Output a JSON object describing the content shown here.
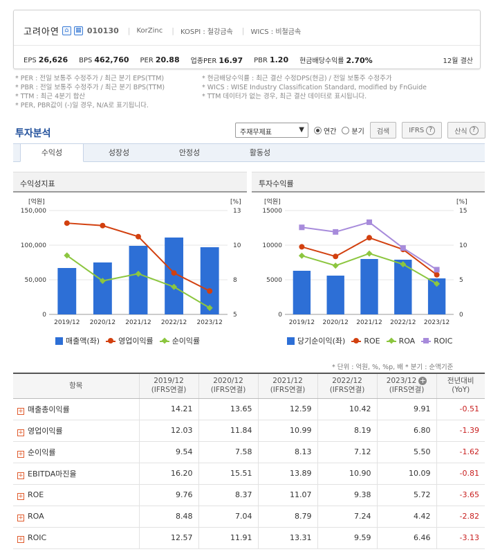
{
  "company": {
    "name": "고려아연",
    "icon1": "home-icon",
    "icon2": "building-icon",
    "code": "010130",
    "eng_name": "KorZinc",
    "kospi": "KOSPI : 철강금속",
    "wics": "WICS : 비철금속"
  },
  "stats": [
    {
      "label": "EPS",
      "value": "26,626"
    },
    {
      "label": "BPS",
      "value": "462,760"
    },
    {
      "label": "PER",
      "value": "20.88"
    },
    {
      "label": "업종PER",
      "value": "16.97"
    },
    {
      "label": "PBR",
      "value": "1.20"
    },
    {
      "label": "현금배당수익률",
      "value": "2.70%"
    }
  ],
  "settle": "12월 결산",
  "notes": {
    "left": [
      "* PER : 전일 보통주 수정주가 / 최근 분기 EPS(TTM)",
      "* PBR : 전일 보통주 수정주가 / 최근 분기 BPS(TTM)",
      "* TTM : 최근 4분기 합산",
      "* PER, PBR값이 (-)일 경우, N/A로 표기됩니다."
    ],
    "right": [
      "* 현금배당수익률 : 최근 결산 수정DPS(현금) / 전일 보통주 수정주가",
      "* WICS : WISE Industry Classification Standard, modified by FnGuide",
      "* TTM 데이터가 없는 경우, 최근 결산 데이터로 표시됩니다."
    ]
  },
  "section_title": "투자분석",
  "controls": {
    "select_value": "주재무제표",
    "radio_annual": "연간",
    "radio_quarter": "분기",
    "search_btn": "검색",
    "ifrs_btn": "IFRS",
    "calc_btn": "산식"
  },
  "tabs": [
    "수익성",
    "성장성",
    "안정성",
    "활동성"
  ],
  "panels": {
    "left_title": "수익성지표",
    "right_title": "투자수익률"
  },
  "chart_data": [
    {
      "type": "bar",
      "categories": [
        "2019/12",
        "2020/12",
        "2021/12",
        "2022/12",
        "2023/12"
      ],
      "y_left": {
        "unit": "[억원]",
        "range": [
          0,
          150000
        ],
        "ticks": [
          "0",
          "50,000",
          "100,000",
          "150,000"
        ]
      },
      "y_right": {
        "unit": "[%]",
        "range": [
          5,
          13
        ],
        "ticks": [
          "5",
          "8",
          "10",
          "13"
        ]
      },
      "series": [
        {
          "name": "매출액(좌)",
          "kind": "bar",
          "axis": "left",
          "color": "#2d6fd6",
          "values": [
            67000,
            75000,
            99000,
            111000,
            97000
          ]
        },
        {
          "name": "영업이익률",
          "kind": "line",
          "axis": "right",
          "color": "#d2400f",
          "marker": "circle",
          "values": [
            12.03,
            11.84,
            10.99,
            8.19,
            6.8
          ]
        },
        {
          "name": "순이익률",
          "kind": "line",
          "axis": "right",
          "color": "#8cc63f",
          "marker": "diamond",
          "values": [
            9.54,
            7.58,
            8.13,
            7.12,
            5.5
          ]
        }
      ]
    },
    {
      "type": "bar",
      "categories": [
        "2019/12",
        "2020/12",
        "2021/12",
        "2022/12",
        "2023/12"
      ],
      "y_left": {
        "unit": "[억원]",
        "range": [
          0,
          15000
        ],
        "ticks": [
          "0",
          "5000",
          "10000",
          "15000"
        ]
      },
      "y_right": {
        "unit": "[%]",
        "range": [
          0,
          15
        ],
        "ticks": [
          "0",
          "5",
          "10",
          "15"
        ]
      },
      "series": [
        {
          "name": "당기순이익(좌)",
          "kind": "bar",
          "axis": "left",
          "color": "#2d6fd6",
          "values": [
            6300,
            5600,
            8000,
            7900,
            5200
          ]
        },
        {
          "name": "ROE",
          "kind": "line",
          "axis": "right",
          "color": "#d2400f",
          "marker": "circle",
          "values": [
            9.76,
            8.37,
            11.07,
            9.38,
            5.72
          ]
        },
        {
          "name": "ROA",
          "kind": "line",
          "axis": "right",
          "color": "#8cc63f",
          "marker": "diamond",
          "values": [
            8.48,
            7.04,
            8.79,
            7.24,
            4.42
          ]
        },
        {
          "name": "ROIC",
          "kind": "line",
          "axis": "right",
          "color": "#a78bdb",
          "marker": "square",
          "values": [
            12.57,
            11.91,
            13.31,
            9.59,
            6.46
          ]
        }
      ]
    }
  ],
  "unit_note": "* 단위 : 억원, %, %p, 배     * 분기 : 순액기준",
  "table": {
    "headers": [
      {
        "l1": "항목",
        "l2": ""
      },
      {
        "l1": "2019/12",
        "l2": "(IFRS연결)"
      },
      {
        "l1": "2020/12",
        "l2": "(IFRS연결)"
      },
      {
        "l1": "2021/12",
        "l2": "(IFRS연결)"
      },
      {
        "l1": "2022/12",
        "l2": "(IFRS연결)"
      },
      {
        "l1": "2023/12",
        "l2": "(IFRS연결)"
      },
      {
        "l1": "전년대비",
        "l2": "(YoY)"
      }
    ],
    "rows": [
      {
        "name": "매출총이익률",
        "vals": [
          "14.21",
          "13.65",
          "12.59",
          "10.42",
          "9.91"
        ],
        "yoy": "-0.51"
      },
      {
        "name": "영업이익률",
        "vals": [
          "12.03",
          "11.84",
          "10.99",
          "8.19",
          "6.80"
        ],
        "yoy": "-1.39"
      },
      {
        "name": "순이익률",
        "vals": [
          "9.54",
          "7.58",
          "8.13",
          "7.12",
          "5.50"
        ],
        "yoy": "-1.62"
      },
      {
        "name": "EBITDA마진율",
        "vals": [
          "16.20",
          "15.51",
          "13.89",
          "10.90",
          "10.09"
        ],
        "yoy": "-0.81"
      },
      {
        "name": "ROE",
        "vals": [
          "9.76",
          "8.37",
          "11.07",
          "9.38",
          "5.72"
        ],
        "yoy": "-3.65"
      },
      {
        "name": "ROA",
        "vals": [
          "8.48",
          "7.04",
          "8.79",
          "7.24",
          "4.42"
        ],
        "yoy": "-2.82"
      },
      {
        "name": "ROIC",
        "vals": [
          "12.57",
          "11.91",
          "13.31",
          "9.59",
          "6.46"
        ],
        "yoy": "-3.13"
      }
    ]
  }
}
